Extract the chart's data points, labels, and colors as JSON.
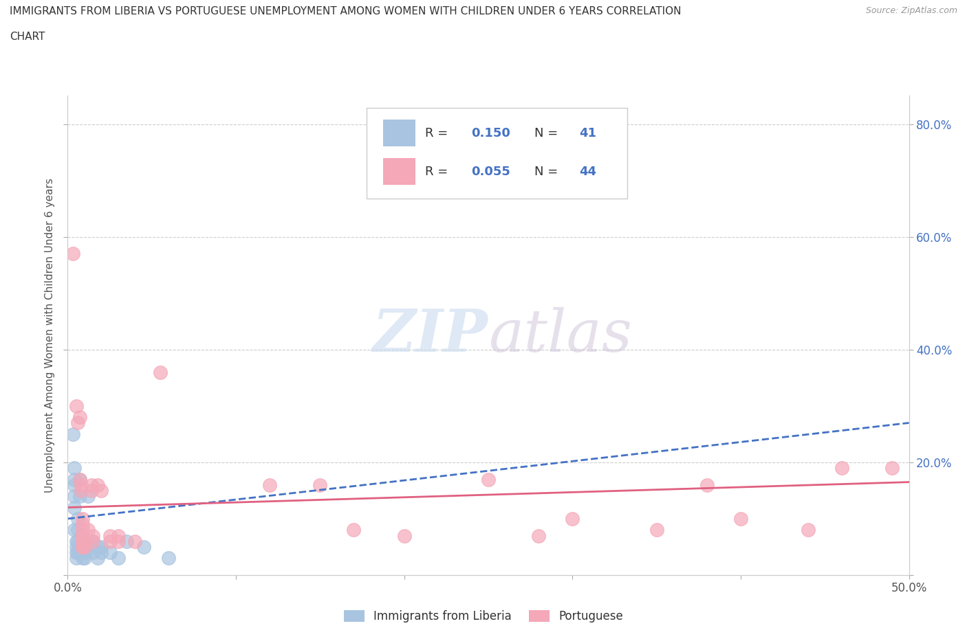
{
  "title_line1": "IMMIGRANTS FROM LIBERIA VS PORTUGUESE UNEMPLOYMENT AMONG WOMEN WITH CHILDREN UNDER 6 YEARS CORRELATION",
  "title_line2": "CHART",
  "source": "Source: ZipAtlas.com",
  "ylabel": "Unemployment Among Women with Children Under 6 years",
  "xlim": [
    0.0,
    0.5
  ],
  "ylim": [
    0.0,
    0.85
  ],
  "xticks": [
    0.0,
    0.1,
    0.2,
    0.3,
    0.4,
    0.5
  ],
  "xticklabels_sparse": [
    "0.0%",
    "",
    "",
    "",
    "",
    "50.0%"
  ],
  "yticks": [
    0.0,
    0.2,
    0.4,
    0.6,
    0.8
  ],
  "yticklabels_right": [
    "",
    "20.0%",
    "40.0%",
    "60.0%",
    "80.0%"
  ],
  "blue_color": "#a8c4e0",
  "pink_color": "#f4a8b8",
  "blue_line_color": "#4472c4",
  "pink_line_color": "#e06080",
  "background_color": "#ffffff",
  "blue_scatter": [
    [
      0.003,
      0.25
    ],
    [
      0.004,
      0.19
    ],
    [
      0.004,
      0.17
    ],
    [
      0.004,
      0.16
    ],
    [
      0.004,
      0.14
    ],
    [
      0.004,
      0.12
    ],
    [
      0.004,
      0.08
    ],
    [
      0.005,
      0.06
    ],
    [
      0.005,
      0.05
    ],
    [
      0.005,
      0.04
    ],
    [
      0.005,
      0.03
    ],
    [
      0.006,
      0.1
    ],
    [
      0.006,
      0.08
    ],
    [
      0.006,
      0.06
    ],
    [
      0.006,
      0.04
    ],
    [
      0.007,
      0.17
    ],
    [
      0.007,
      0.14
    ],
    [
      0.007,
      0.05
    ],
    [
      0.007,
      0.04
    ],
    [
      0.008,
      0.07
    ],
    [
      0.008,
      0.06
    ],
    [
      0.008,
      0.05
    ],
    [
      0.008,
      0.04
    ],
    [
      0.009,
      0.04
    ],
    [
      0.009,
      0.03
    ],
    [
      0.01,
      0.05
    ],
    [
      0.01,
      0.04
    ],
    [
      0.01,
      0.03
    ],
    [
      0.012,
      0.14
    ],
    [
      0.015,
      0.06
    ],
    [
      0.015,
      0.05
    ],
    [
      0.015,
      0.04
    ],
    [
      0.018,
      0.05
    ],
    [
      0.018,
      0.03
    ],
    [
      0.02,
      0.05
    ],
    [
      0.02,
      0.04
    ],
    [
      0.025,
      0.04
    ],
    [
      0.03,
      0.03
    ],
    [
      0.035,
      0.06
    ],
    [
      0.045,
      0.05
    ],
    [
      0.06,
      0.03
    ]
  ],
  "pink_scatter": [
    [
      0.003,
      0.57
    ],
    [
      0.005,
      0.3
    ],
    [
      0.006,
      0.27
    ],
    [
      0.007,
      0.28
    ],
    [
      0.007,
      0.17
    ],
    [
      0.008,
      0.16
    ],
    [
      0.008,
      0.15
    ],
    [
      0.009,
      0.1
    ],
    [
      0.009,
      0.09
    ],
    [
      0.009,
      0.08
    ],
    [
      0.009,
      0.07
    ],
    [
      0.009,
      0.07
    ],
    [
      0.009,
      0.06
    ],
    [
      0.009,
      0.06
    ],
    [
      0.009,
      0.05
    ],
    [
      0.009,
      0.05
    ],
    [
      0.01,
      0.06
    ],
    [
      0.01,
      0.05
    ],
    [
      0.012,
      0.08
    ],
    [
      0.014,
      0.16
    ],
    [
      0.014,
      0.15
    ],
    [
      0.015,
      0.07
    ],
    [
      0.015,
      0.06
    ],
    [
      0.018,
      0.16
    ],
    [
      0.02,
      0.15
    ],
    [
      0.025,
      0.07
    ],
    [
      0.025,
      0.06
    ],
    [
      0.03,
      0.07
    ],
    [
      0.03,
      0.06
    ],
    [
      0.04,
      0.06
    ],
    [
      0.055,
      0.36
    ],
    [
      0.12,
      0.16
    ],
    [
      0.15,
      0.16
    ],
    [
      0.17,
      0.08
    ],
    [
      0.2,
      0.07
    ],
    [
      0.25,
      0.17
    ],
    [
      0.28,
      0.07
    ],
    [
      0.3,
      0.1
    ],
    [
      0.35,
      0.08
    ],
    [
      0.38,
      0.16
    ],
    [
      0.4,
      0.1
    ],
    [
      0.44,
      0.08
    ],
    [
      0.46,
      0.19
    ],
    [
      0.49,
      0.19
    ]
  ],
  "blue_trend_x": [
    0.0,
    0.5
  ],
  "blue_trend_y": [
    0.1,
    0.27
  ],
  "pink_trend_x": [
    0.0,
    0.5
  ],
  "pink_trend_y": [
    0.12,
    0.165
  ],
  "watermark_zip": "ZIP",
  "watermark_atlas": "atlas",
  "legend_blue_r": "0.150",
  "legend_blue_n": "41",
  "legend_pink_r": "0.055",
  "legend_pink_n": "44",
  "figsize": [
    14.06,
    9.3
  ],
  "dpi": 100
}
